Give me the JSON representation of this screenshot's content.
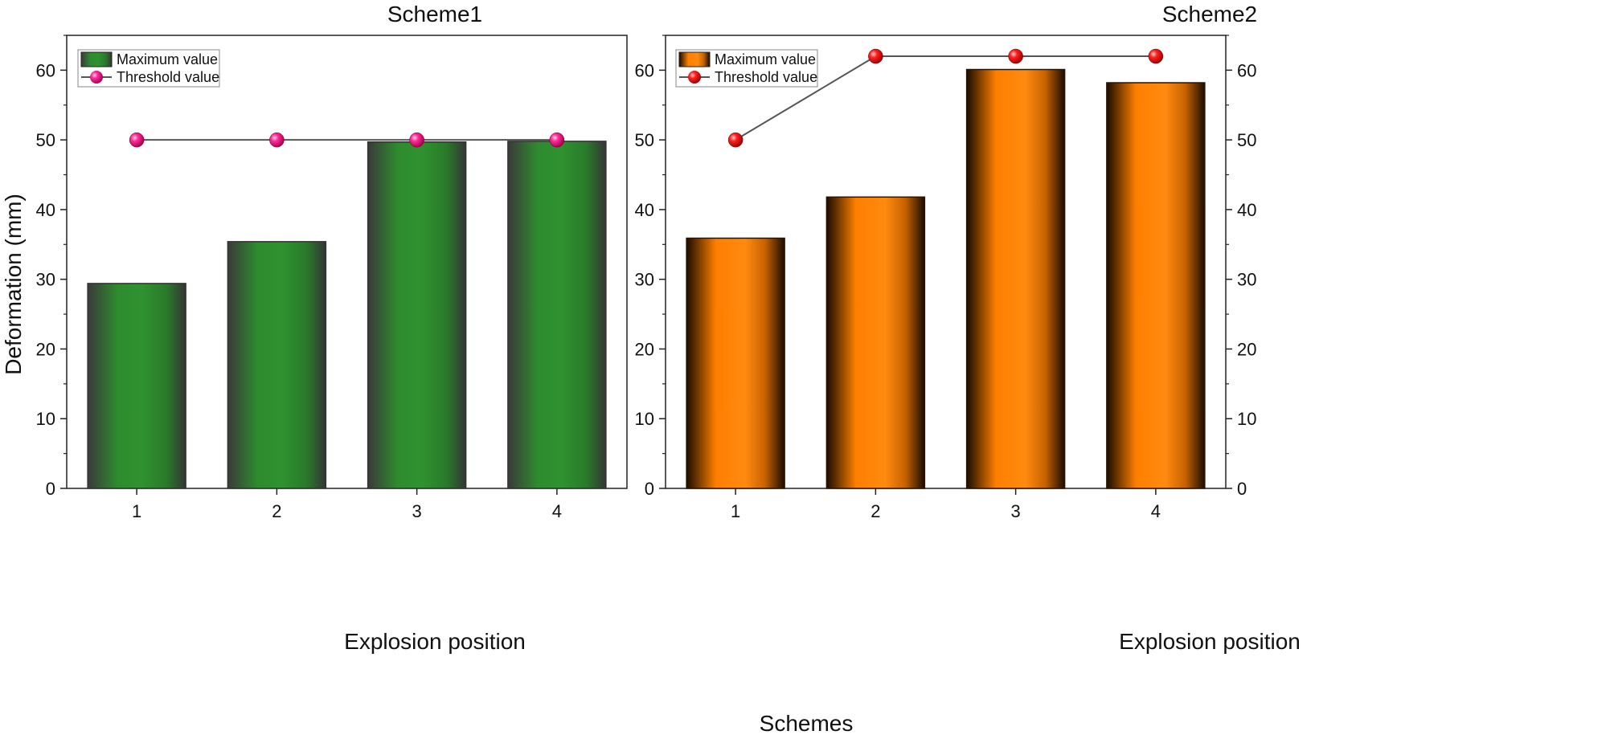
{
  "figure_label": "Schemes",
  "shared_ylabel": "Deformation (mm)",
  "chart_data": [
    {
      "type": "bar",
      "title": "Scheme1",
      "xlabel": "Explosion position",
      "ylabel": "Deformation (mm)",
      "categories": [
        "1",
        "2",
        "3",
        "4"
      ],
      "ylim": [
        0,
        65
      ],
      "yticks": [
        0,
        10,
        20,
        30,
        40,
        50,
        60
      ],
      "series": [
        {
          "name": "Maximum value",
          "kind": "bar",
          "values": [
            29.4,
            35.4,
            49.7,
            49.8
          ],
          "color": "#2e8b2e",
          "edge_color": "#333333"
        },
        {
          "name": "Threshold value",
          "kind": "line",
          "values": [
            50,
            50,
            50,
            50
          ],
          "color": "#e0147a"
        }
      ],
      "legend": "top-left"
    },
    {
      "type": "bar",
      "title": "Scheme2",
      "xlabel": "Explosion position",
      "ylabel": "",
      "categories": [
        "1",
        "2",
        "3",
        "4"
      ],
      "ylim": [
        0,
        65
      ],
      "yticks": [
        0,
        10,
        20,
        30,
        40,
        50,
        60
      ],
      "series": [
        {
          "name": "Maximum value",
          "kind": "bar",
          "values": [
            35.9,
            41.8,
            60.1,
            58.2
          ],
          "color": "#ff7f00",
          "edge_color": "#2a1400"
        },
        {
          "name": "Threshold value",
          "kind": "line",
          "values": [
            50,
            62,
            62,
            62
          ],
          "color": "#e01010"
        }
      ],
      "legend": "top-left"
    }
  ]
}
